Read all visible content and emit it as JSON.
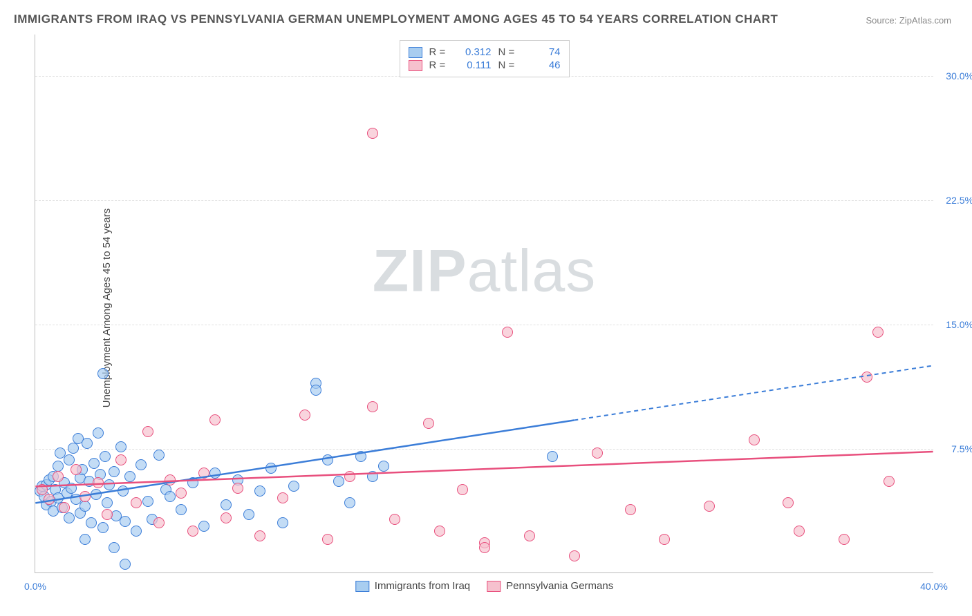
{
  "title": "IMMIGRANTS FROM IRAQ VS PENNSYLVANIA GERMAN UNEMPLOYMENT AMONG AGES 45 TO 54 YEARS CORRELATION CHART",
  "source": "Source: ZipAtlas.com",
  "watermark_bold": "ZIP",
  "watermark_light": "atlas",
  "y_axis_label": "Unemployment Among Ages 45 to 54 years",
  "x_range": [
    0,
    40
  ],
  "y_range": [
    0,
    32.5
  ],
  "y_ticks": [
    {
      "v": 7.5,
      "label": "7.5%"
    },
    {
      "v": 15.0,
      "label": "15.0%"
    },
    {
      "v": 22.5,
      "label": "22.5%"
    },
    {
      "v": 30.0,
      "label": "30.0%"
    }
  ],
  "x_ticks": [
    {
      "v": 0,
      "label": "0.0%"
    },
    {
      "v": 40,
      "label": "40.0%"
    }
  ],
  "series": [
    {
      "name": "Immigrants from Iraq",
      "fill": "#a8cdf0",
      "stroke": "#3b7dd8",
      "swatch_fill": "#a8cdf0",
      "swatch_stroke": "#3b7dd8",
      "R": "0.312",
      "N": "74",
      "marker_radius": 8,
      "regression": {
        "solid": {
          "x1": 0,
          "y1": 4.2,
          "x2": 24,
          "y2": 9.2
        },
        "dashed": {
          "x1": 24,
          "y1": 9.2,
          "x2": 40,
          "y2": 12.5
        }
      },
      "points": [
        [
          0.2,
          4.9
        ],
        [
          0.3,
          5.2
        ],
        [
          0.4,
          4.6
        ],
        [
          0.5,
          5.3
        ],
        [
          0.5,
          4.1
        ],
        [
          0.6,
          5.6
        ],
        [
          0.7,
          4.3
        ],
        [
          0.8,
          5.8
        ],
        [
          0.8,
          3.7
        ],
        [
          0.9,
          5.0
        ],
        [
          1.0,
          6.4
        ],
        [
          1.0,
          4.5
        ],
        [
          1.1,
          7.2
        ],
        [
          1.2,
          3.9
        ],
        [
          1.3,
          5.4
        ],
        [
          1.4,
          4.8
        ],
        [
          1.5,
          6.8
        ],
        [
          1.5,
          3.3
        ],
        [
          1.6,
          5.1
        ],
        [
          1.7,
          7.5
        ],
        [
          1.8,
          4.4
        ],
        [
          1.9,
          8.1
        ],
        [
          2.0,
          5.7
        ],
        [
          2.0,
          3.6
        ],
        [
          2.1,
          6.2
        ],
        [
          2.2,
          4.0
        ],
        [
          2.3,
          7.8
        ],
        [
          2.4,
          5.5
        ],
        [
          2.5,
          3.0
        ],
        [
          2.6,
          6.6
        ],
        [
          2.7,
          4.7
        ],
        [
          2.8,
          8.4
        ],
        [
          2.9,
          5.9
        ],
        [
          3.0,
          2.7
        ],
        [
          3.1,
          7.0
        ],
        [
          3.2,
          4.2
        ],
        [
          3.3,
          5.3
        ],
        [
          3.5,
          6.1
        ],
        [
          3.6,
          3.4
        ],
        [
          3.8,
          7.6
        ],
        [
          3.9,
          4.9
        ],
        [
          4.0,
          3.1
        ],
        [
          4.2,
          5.8
        ],
        [
          4.5,
          2.5
        ],
        [
          4.7,
          6.5
        ],
        [
          5.0,
          4.3
        ],
        [
          5.2,
          3.2
        ],
        [
          5.5,
          7.1
        ],
        [
          5.8,
          5.0
        ],
        [
          6.0,
          4.6
        ],
        [
          3.0,
          12.0
        ],
        [
          6.5,
          3.8
        ],
        [
          7.0,
          5.4
        ],
        [
          7.5,
          2.8
        ],
        [
          8.0,
          6.0
        ],
        [
          8.5,
          4.1
        ],
        [
          9.0,
          5.6
        ],
        [
          9.5,
          3.5
        ],
        [
          10.0,
          4.9
        ],
        [
          10.5,
          6.3
        ],
        [
          11.0,
          3.0
        ],
        [
          11.5,
          5.2
        ],
        [
          12.5,
          11.4
        ],
        [
          12.5,
          11.0
        ],
        [
          13.0,
          6.8
        ],
        [
          13.5,
          5.5
        ],
        [
          14.0,
          4.2
        ],
        [
          14.5,
          7.0
        ],
        [
          15.0,
          5.8
        ],
        [
          15.5,
          6.4
        ],
        [
          4.0,
          0.5
        ],
        [
          23.0,
          7.0
        ],
        [
          2.2,
          2.0
        ],
        [
          3.5,
          1.5
        ]
      ]
    },
    {
      "name": "Pennsylvania Germans",
      "fill": "#f6c1ce",
      "stroke": "#e84f7d",
      "swatch_fill": "#f6c1ce",
      "swatch_stroke": "#e84f7d",
      "R": "0.111",
      "N": "46",
      "marker_radius": 8,
      "regression": {
        "solid": {
          "x1": 0,
          "y1": 5.2,
          "x2": 40,
          "y2": 7.3
        },
        "dashed": null
      },
      "points": [
        [
          0.3,
          5.0
        ],
        [
          0.6,
          4.4
        ],
        [
          1.0,
          5.8
        ],
        [
          1.3,
          3.9
        ],
        [
          1.8,
          6.2
        ],
        [
          2.2,
          4.6
        ],
        [
          2.8,
          5.4
        ],
        [
          3.2,
          3.5
        ],
        [
          3.8,
          6.8
        ],
        [
          4.5,
          4.2
        ],
        [
          5.0,
          8.5
        ],
        [
          5.5,
          3.0
        ],
        [
          6.0,
          5.6
        ],
        [
          6.5,
          4.8
        ],
        [
          7.0,
          2.5
        ],
        [
          7.5,
          6.0
        ],
        [
          8.0,
          9.2
        ],
        [
          8.5,
          3.3
        ],
        [
          9.0,
          5.1
        ],
        [
          10.0,
          2.2
        ],
        [
          11.0,
          4.5
        ],
        [
          12.0,
          9.5
        ],
        [
          13.0,
          2.0
        ],
        [
          14.0,
          5.8
        ],
        [
          15.0,
          10.0
        ],
        [
          15.0,
          26.5
        ],
        [
          16.0,
          3.2
        ],
        [
          17.5,
          9.0
        ],
        [
          18.0,
          2.5
        ],
        [
          19.0,
          5.0
        ],
        [
          20.0,
          1.8
        ],
        [
          20.0,
          1.5
        ],
        [
          21.0,
          14.5
        ],
        [
          22.0,
          2.2
        ],
        [
          24.0,
          1.0
        ],
        [
          25.0,
          7.2
        ],
        [
          26.5,
          3.8
        ],
        [
          28.0,
          2.0
        ],
        [
          30.0,
          4.0
        ],
        [
          32.0,
          8.0
        ],
        [
          33.5,
          4.2
        ],
        [
          34.0,
          2.5
        ],
        [
          36.0,
          2.0
        ],
        [
          37.0,
          11.8
        ],
        [
          37.5,
          14.5
        ],
        [
          38.0,
          5.5
        ]
      ]
    }
  ],
  "legend_top_labels": {
    "R": "R =",
    "N": "N ="
  }
}
